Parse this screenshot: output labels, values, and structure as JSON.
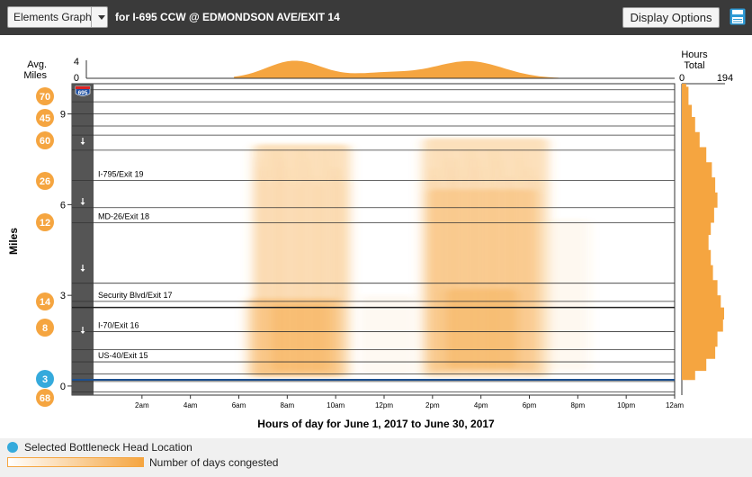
{
  "toolbar": {
    "graph_select_label": "Elements Graph",
    "route_title": "for I-695 CCW @ EDMONDSON AVE/EXIT 14",
    "display_options_label": "Display Options",
    "save_icon": "floppy-disk-icon"
  },
  "chart_data": {
    "type": "heatmap",
    "title": "Hours of day for June 1, 2017 to June 30, 2017",
    "xlabel": "Hours of day for June 1, 2017 to June 30, 2017",
    "ylabel": "Miles",
    "x_range_hours": [
      0,
      24
    ],
    "x_ticks": [
      "2am",
      "4am",
      "6am",
      "8am",
      "10am",
      "12pm",
      "2pm",
      "4pm",
      "6pm",
      "8pm",
      "10pm",
      "12am"
    ],
    "y_range_miles": [
      -0.3,
      10
    ],
    "y_ticks": [
      "0",
      "3",
      "6",
      "9"
    ],
    "route_shield": "695",
    "interchanges": [
      {
        "label": "I-795/Exit 19",
        "mile": 6.8
      },
      {
        "label": "MD-26/Exit 18",
        "mile": 5.4
      },
      {
        "label": "Security Blvd/Exit 17",
        "mile": 2.8
      },
      {
        "label": "I-70/Exit 16",
        "mile": 1.8
      },
      {
        "label": "US-40/Exit 15",
        "mile": 0.8
      }
    ],
    "exit_badges": [
      {
        "number": "70",
        "mile": 9.4
      },
      {
        "number": "45",
        "mile": 8.7
      },
      {
        "number": "60",
        "mile": 8.0
      },
      {
        "number": "26",
        "mile": 6.7
      },
      {
        "number": "12",
        "mile": 5.3
      },
      {
        "number": "14",
        "mile": 2.6
      },
      {
        "number": "8",
        "mile": 1.7
      },
      {
        "number": "3",
        "mile": 0.0,
        "selected": true
      },
      {
        "number": "68",
        "mile": -0.7
      }
    ],
    "congestion_periods": [
      {
        "start_hour": 6.5,
        "end_hour": 10.5,
        "peak_hour": 8.3
      },
      {
        "start_hour": 13.5,
        "end_hour": 18.8,
        "peak_hour": 15.8
      }
    ],
    "top_panel": {
      "label": "Avg. Miles",
      "y_range": [
        0,
        4
      ],
      "y_ticks": [
        "4",
        "0"
      ]
    },
    "right_panel": {
      "label": "Hours Total",
      "x_range": [
        0,
        194
      ],
      "x_ticks": [
        "0",
        "194"
      ]
    },
    "colors": {
      "congestion": "#f5a540",
      "selected": "#35aadc",
      "road_line": "#1c4f8f"
    }
  },
  "legend": {
    "selected_label": "Selected Bottleneck Head Location",
    "gradient_label": "Number of days congested"
  }
}
